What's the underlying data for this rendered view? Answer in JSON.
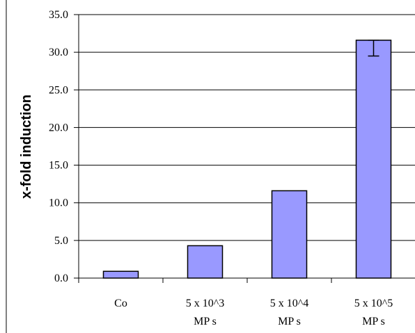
{
  "chart_data": {
    "type": "bar",
    "title": "",
    "xlabel": "",
    "ylabel": "x-fold induction",
    "categories": [
      [
        "Co"
      ],
      [
        "5 x 10^3",
        "MP s"
      ],
      [
        "5 x 10^4",
        "MP s"
      ],
      [
        "5 x 10^5",
        "MP s"
      ]
    ],
    "values": [
      0.9,
      4.3,
      11.6,
      31.6
    ],
    "error_low": [
      null,
      null,
      null,
      29.5
    ],
    "ylim": [
      0,
      35
    ],
    "yticks": [
      "0.0",
      "5.0",
      "10.0",
      "15.0",
      "20.0",
      "25.0",
      "30.0",
      "35.0"
    ],
    "grid": true,
    "bar_color": "#9999ff",
    "legend": "none"
  }
}
